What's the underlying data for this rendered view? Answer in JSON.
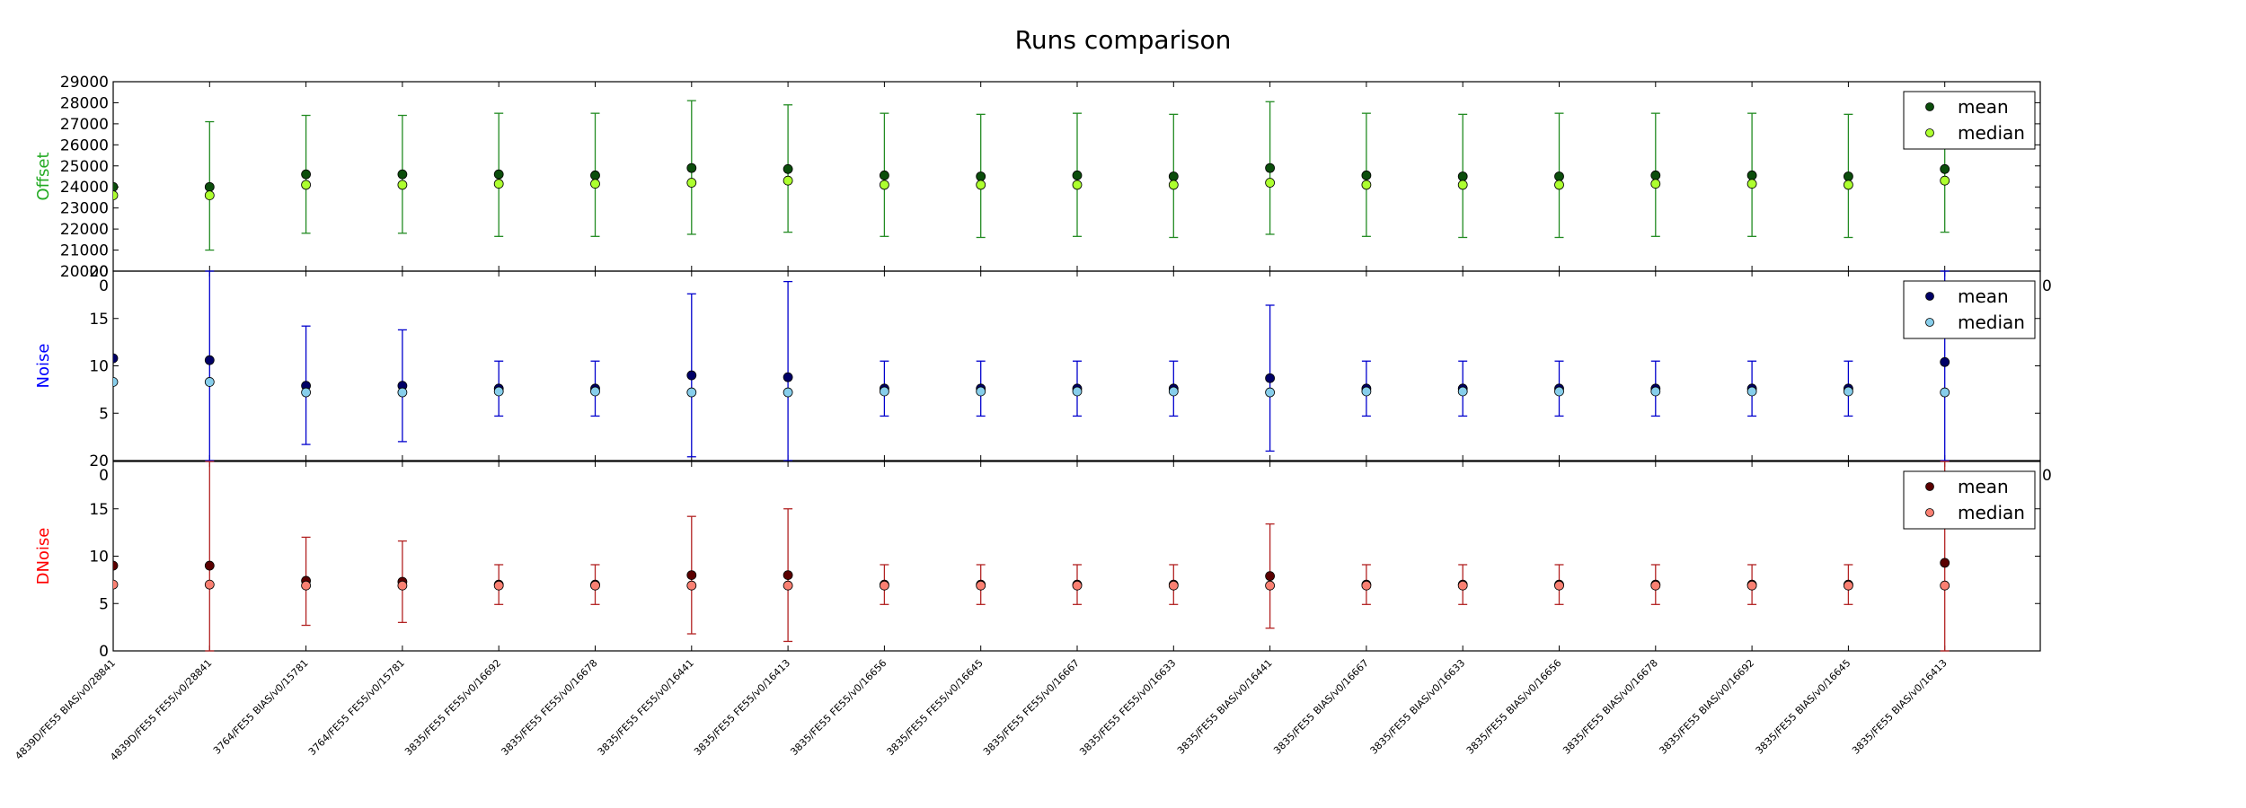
{
  "title": "Runs comparison",
  "chart_data": {
    "type": "scatter",
    "categories": [
      "4839D/FE55 BIAS/v0/28841",
      "4839D/FE55 FE55/v0/28841",
      "3764/FE55 BIAS/v0/15781",
      "3764/FE55 FE55/v0/15781",
      "3835/FE55 FE55/v0/16692",
      "3835/FE55 FE55/v0/16678",
      "3835/FE55 FE55/v0/16441",
      "3835/FE55 FE55/v0/16413",
      "3835/FE55 FE55/v0/16656",
      "3835/FE55 FE55/v0/16645",
      "3835/FE55 FE55/v0/16667",
      "3835/FE55 FE55/v0/16633",
      "3835/FE55 BIAS/v0/16441",
      "3835/FE55 BIAS/v0/16667",
      "3835/FE55 BIAS/v0/16633",
      "3835/FE55 BIAS/v0/16656",
      "3835/FE55 BIAS/v0/16678",
      "3835/FE55 BIAS/v0/16692",
      "3835/FE55 BIAS/v0/16645",
      "3835/FE55 BIAS/v0/16413"
    ],
    "panels": [
      {
        "ylabel": "Offset",
        "ylabel_color": "#22aa22",
        "ylim": [
          20000,
          29000
        ],
        "yticks": [
          "20000",
          "21000",
          "22000",
          "23000",
          "24000",
          "25000",
          "26000",
          "27000",
          "28000",
          "29000"
        ],
        "corner_label": "20",
        "right_label": "0",
        "errorbar_color": "#228b22",
        "series": [
          {
            "name": "mean",
            "color": "#0b4d0b",
            "values": [
              24000,
              24000,
              24600,
              24600,
              24600,
              24550,
              24900,
              24850,
              24550,
              24500,
              24550,
              24500,
              24900,
              24550,
              24500,
              24500,
              24550,
              24550,
              24500,
              24850
            ]
          },
          {
            "name": "median",
            "color": "#adff2f",
            "values": [
              23600,
              23600,
              24100,
              24100,
              24150,
              24150,
              24200,
              24300,
              24100,
              24100,
              24100,
              24100,
              24200,
              24100,
              24100,
              24100,
              24150,
              24150,
              24100,
              24300
            ]
          }
        ],
        "err_low": [
          null,
          21000,
          21800,
          21800,
          21650,
          21650,
          21750,
          21850,
          21650,
          21600,
          21650,
          21600,
          21750,
          21650,
          21600,
          21600,
          21650,
          21650,
          21600,
          21850
        ],
        "err_high": [
          null,
          27100,
          27400,
          27400,
          27500,
          27500,
          28100,
          27900,
          27500,
          27450,
          27500,
          27450,
          28050,
          27500,
          27450,
          27500,
          27500,
          27500,
          27450,
          27900
        ]
      },
      {
        "ylabel": "Noise",
        "ylabel_color": "#0000ff",
        "ylim": [
          0,
          20
        ],
        "yticks": [
          "5",
          "10",
          "15"
        ],
        "corner_label": "20",
        "right_label": "0",
        "errorbar_color": "#0000cd",
        "series": [
          {
            "name": "mean",
            "color": "#000066",
            "values": [
              10.8,
              10.6,
              7.9,
              7.9,
              7.6,
              7.6,
              9.0,
              8.8,
              7.6,
              7.6,
              7.6,
              7.6,
              8.7,
              7.6,
              7.6,
              7.6,
              7.6,
              7.6,
              7.6,
              10.4
            ]
          },
          {
            "name": "median",
            "color": "#87ceeb",
            "values": [
              8.3,
              8.3,
              7.2,
              7.2,
              7.3,
              7.3,
              7.2,
              7.2,
              7.3,
              7.3,
              7.3,
              7.3,
              7.2,
              7.3,
              7.3,
              7.3,
              7.3,
              7.3,
              7.3,
              7.2
            ]
          }
        ],
        "err_low": [
          null,
          0,
          1.7,
          2.0,
          4.7,
          4.7,
          0.4,
          0,
          4.7,
          4.7,
          4.7,
          4.7,
          1.0,
          4.7,
          4.7,
          4.7,
          4.7,
          4.7,
          4.7,
          0
        ],
        "err_high": [
          null,
          20,
          14.2,
          13.8,
          10.5,
          10.5,
          17.6,
          18.9,
          10.5,
          10.5,
          10.5,
          10.5,
          16.4,
          10.5,
          10.5,
          10.5,
          10.5,
          10.5,
          10.5,
          20
        ]
      },
      {
        "ylabel": "DNoise",
        "ylabel_color": "#ff0000",
        "ylim": [
          0,
          20
        ],
        "yticks": [
          "0",
          "5",
          "10",
          "15"
        ],
        "corner_label": "",
        "right_label": "",
        "errorbar_color": "#b22222",
        "series": [
          {
            "name": "mean",
            "color": "#5a0000",
            "values": [
              9.0,
              9.0,
              7.4,
              7.3,
              7.0,
              7.0,
              8.0,
              8.0,
              7.0,
              7.0,
              7.0,
              7.0,
              7.9,
              7.0,
              7.0,
              7.0,
              7.0,
              7.0,
              7.0,
              9.3
            ]
          },
          {
            "name": "median",
            "color": "#fa8072",
            "values": [
              7.0,
              7.0,
              6.9,
              6.9,
              6.9,
              6.9,
              6.9,
              6.9,
              6.9,
              6.9,
              6.9,
              6.9,
              6.9,
              6.9,
              6.9,
              6.9,
              6.9,
              6.9,
              6.9,
              6.9
            ]
          }
        ],
        "err_low": [
          null,
          0,
          2.7,
          3.0,
          4.9,
          4.9,
          1.8,
          1.0,
          4.9,
          4.9,
          4.9,
          4.9,
          2.4,
          4.9,
          4.9,
          4.9,
          4.9,
          4.9,
          4.9,
          0
        ],
        "err_high": [
          null,
          20,
          12.0,
          11.6,
          9.1,
          9.1,
          14.2,
          15.0,
          9.1,
          9.1,
          9.1,
          9.1,
          13.4,
          9.1,
          9.1,
          9.1,
          9.1,
          9.1,
          9.1,
          20
        ]
      }
    ]
  }
}
